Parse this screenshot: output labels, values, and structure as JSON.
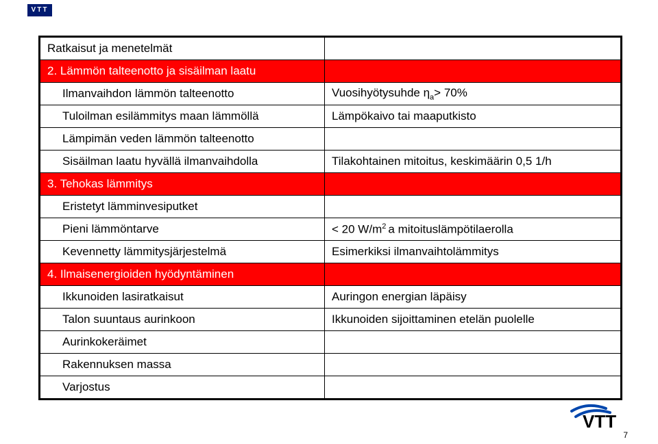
{
  "header": {
    "vtt_top_label": "VTT"
  },
  "table": {
    "colors": {
      "red_bg": "#ff0000",
      "red_fg": "#ffffff",
      "text": "#000000",
      "border": "#000000",
      "background": "#ffffff"
    },
    "font_size_pt": 13,
    "rows": [
      {
        "left": "Ratkaisut ja menetelmät",
        "right": "",
        "cls": "",
        "indent": ""
      },
      {
        "left": "2. Lämmön talteenotto ja sisäilman laatu",
        "right": "",
        "cls": "redrow",
        "indent": ""
      },
      {
        "left": "Ilmanvaihdon lämmön talteenotto",
        "right_html": "Vuosihyötysuhde η<span class=\"sub\">a</span>> 70%",
        "cls": "",
        "indent": "indent1"
      },
      {
        "left": "Tuloilman esilämmitys maan lämmöllä",
        "right": "Lämpökaivo tai maaputkisto",
        "cls": "",
        "indent": "indent1"
      },
      {
        "left": "Lämpimän veden lämmön talteenotto",
        "right": "",
        "cls": "",
        "indent": "indent1"
      },
      {
        "left": "Sisäilman laatu hyvällä ilmanvaihdolla",
        "right": "Tilakohtainen mitoitus,  keskimäärin 0,5 1/h",
        "cls": "",
        "indent": "indent1"
      },
      {
        "left": "3. Tehokas lämmitys",
        "right": "",
        "cls": "redrow",
        "indent": ""
      },
      {
        "left": "Eristetyt lämminvesiputket",
        "right": "",
        "cls": "",
        "indent": "indent1"
      },
      {
        "left": "Pieni lämmöntarve",
        "right_html": "< 20 W/m<span class=\"sup\">2 </span>a mitoituslämpötilaerolla",
        "cls": "",
        "indent": "indent1"
      },
      {
        "left": "Kevennetty lämmitysjärjestelmä",
        "right": "Esimerkiksi ilmanvaihtolämmitys",
        "cls": "",
        "indent": "indent1"
      },
      {
        "left": "4. Ilmaisenergioiden hyödyntäminen",
        "right": "",
        "cls": "redrow",
        "indent": ""
      },
      {
        "left": "Ikkunoiden lasiratkaisut",
        "right": "Auringon energian läpäisy",
        "cls": "",
        "indent": "indent1"
      },
      {
        "left": "Talon suuntaus aurinkoon",
        "right": "Ikkunoiden sijoittaminen etelän puolelle",
        "cls": "",
        "indent": "indent1"
      },
      {
        "left": "Aurinkokeräimet",
        "right": "",
        "cls": "",
        "indent": "indent1"
      },
      {
        "left": "Rakennuksen massa",
        "right": "",
        "cls": "",
        "indent": "indent1"
      },
      {
        "left": "Varjostus",
        "right": "",
        "cls": "",
        "indent": "indent1"
      }
    ]
  },
  "footer": {
    "page_number": "7",
    "logo_color_blue": "#0046ad",
    "logo_color_black": "#000000"
  }
}
